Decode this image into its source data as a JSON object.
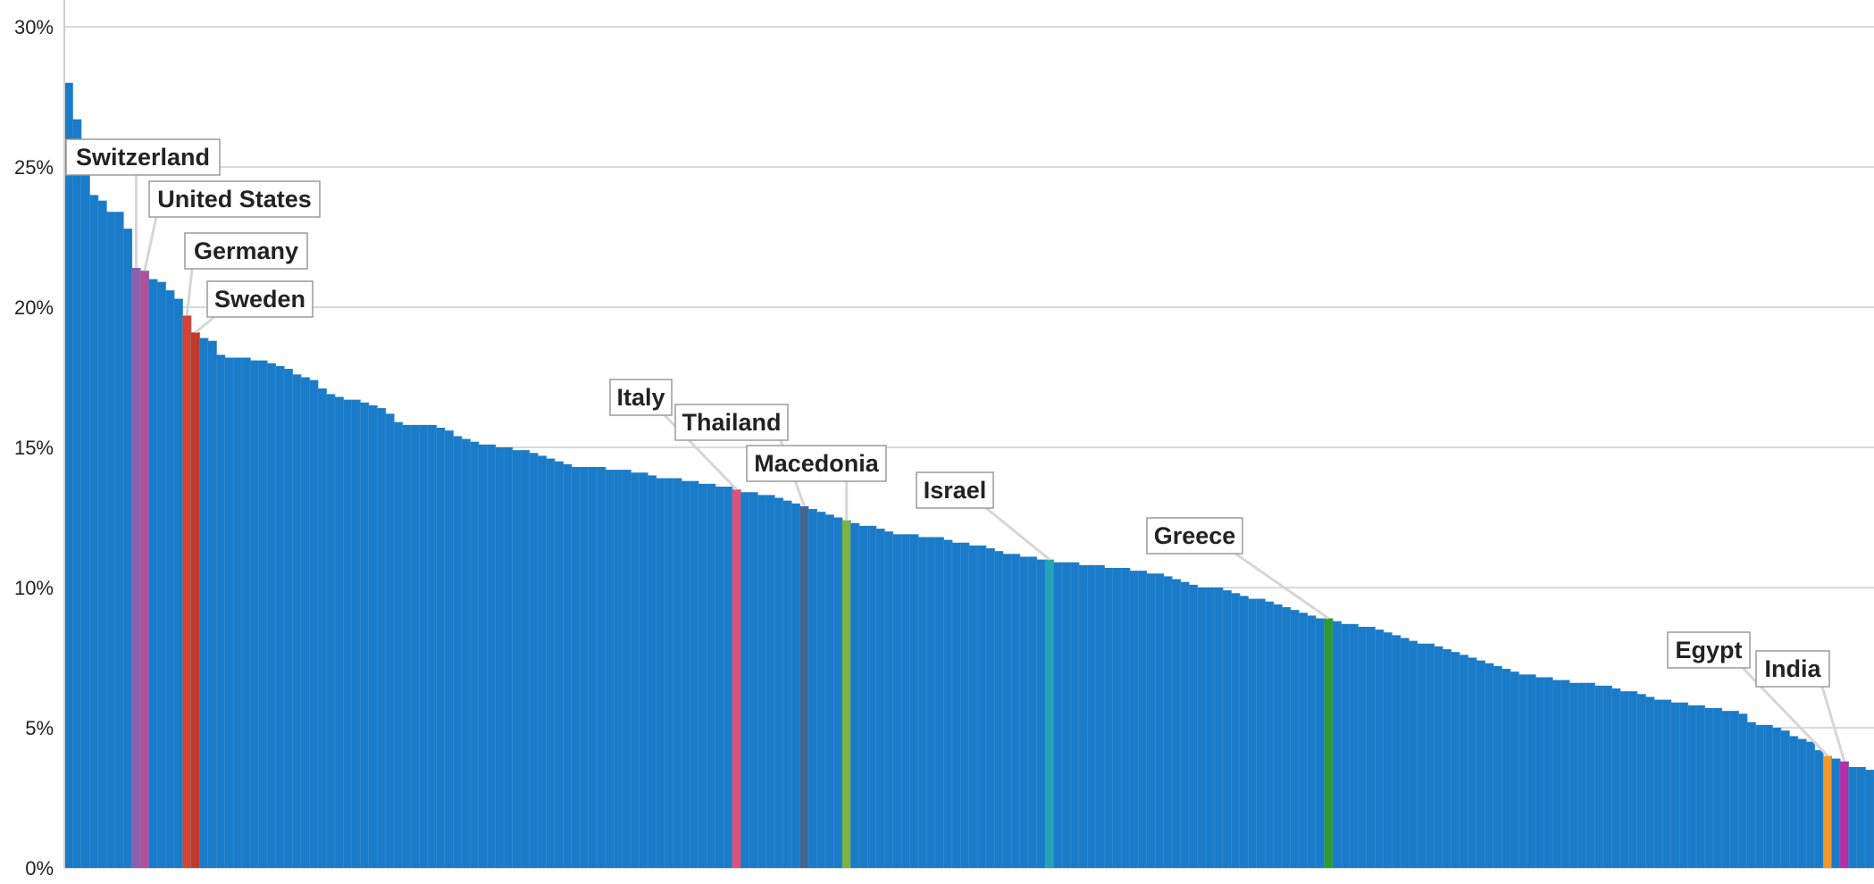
{
  "chart_data": {
    "type": "bar",
    "ylim": [
      0,
      30
    ],
    "yticks": [
      "0%",
      "5%",
      "10%",
      "15%",
      "20%",
      "25%",
      "30%"
    ],
    "grid": true,
    "colors": {
      "default_bar": "#1a7bc8",
      "grid": "#d9d9d9",
      "leader": "#d6d6d6"
    },
    "values": [
      28.0,
      26.7,
      24.8,
      24.0,
      23.8,
      23.4,
      23.4,
      22.8,
      21.4,
      21.3,
      21.0,
      20.9,
      20.6,
      20.3,
      19.7,
      19.1,
      18.9,
      18.8,
      18.3,
      18.2,
      18.2,
      18.2,
      18.1,
      18.1,
      18.0,
      17.9,
      17.8,
      17.6,
      17.5,
      17.4,
      17.1,
      16.9,
      16.8,
      16.7,
      16.7,
      16.6,
      16.5,
      16.4,
      16.2,
      15.9,
      15.8,
      15.8,
      15.8,
      15.8,
      15.7,
      15.6,
      15.4,
      15.3,
      15.2,
      15.1,
      15.1,
      15.0,
      15.0,
      14.9,
      14.9,
      14.8,
      14.7,
      14.6,
      14.5,
      14.4,
      14.3,
      14.3,
      14.3,
      14.3,
      14.2,
      14.2,
      14.2,
      14.1,
      14.1,
      14.0,
      13.9,
      13.9,
      13.9,
      13.8,
      13.8,
      13.7,
      13.7,
      13.6,
      13.6,
      13.5,
      13.4,
      13.4,
      13.3,
      13.3,
      13.2,
      13.1,
      13.0,
      12.9,
      12.8,
      12.7,
      12.6,
      12.5,
      12.4,
      12.3,
      12.2,
      12.2,
      12.1,
      12.0,
      11.9,
      11.9,
      11.9,
      11.8,
      11.8,
      11.8,
      11.7,
      11.6,
      11.6,
      11.5,
      11.5,
      11.4,
      11.3,
      11.2,
      11.2,
      11.1,
      11.1,
      11.0,
      11.0,
      10.9,
      10.9,
      10.9,
      10.8,
      10.8,
      10.8,
      10.7,
      10.7,
      10.7,
      10.6,
      10.6,
      10.5,
      10.5,
      10.4,
      10.3,
      10.2,
      10.1,
      10.0,
      10.0,
      10.0,
      9.9,
      9.8,
      9.7,
      9.6,
      9.6,
      9.5,
      9.4,
      9.3,
      9.2,
      9.1,
      9.0,
      8.9,
      8.9,
      8.8,
      8.7,
      8.7,
      8.6,
      8.6,
      8.5,
      8.4,
      8.3,
      8.2,
      8.1,
      8.0,
      8.0,
      7.9,
      7.8,
      7.7,
      7.6,
      7.5,
      7.4,
      7.3,
      7.2,
      7.1,
      7.0,
      6.9,
      6.9,
      6.8,
      6.8,
      6.7,
      6.7,
      6.6,
      6.6,
      6.6,
      6.5,
      6.5,
      6.4,
      6.3,
      6.3,
      6.2,
      6.1,
      6.0,
      6.0,
      5.9,
      5.9,
      5.8,
      5.8,
      5.7,
      5.7,
      5.6,
      5.6,
      5.5,
      5.2,
      5.1,
      5.1,
      5.0,
      4.9,
      4.7,
      4.6,
      4.5,
      4.2,
      4.0,
      3.9,
      3.8,
      3.6,
      3.6,
      3.5
    ],
    "highlights": [
      {
        "index": 8,
        "color": "#8a5fae"
      },
      {
        "index": 9,
        "color": "#b64d9a"
      },
      {
        "index": 14,
        "color": "#d8412d"
      },
      {
        "index": 15,
        "color": "#c0392b"
      },
      {
        "index": 79,
        "color": "#e0507a"
      },
      {
        "index": 87,
        "color": "#45648f"
      },
      {
        "index": 92,
        "color": "#7cb342"
      },
      {
        "index": 116,
        "color": "#22a3b8"
      },
      {
        "index": 149,
        "color": "#2e9b2e"
      },
      {
        "index": 208,
        "color": "#f2972a"
      },
      {
        "index": 210,
        "color": "#b62fa8"
      }
    ],
    "annotations": [
      {
        "label": "Switzerland",
        "index": 8
      },
      {
        "label": "United States",
        "index": 9
      },
      {
        "label": "Germany",
        "index": 14
      },
      {
        "label": "Sweden",
        "index": 15
      },
      {
        "label": "Italy",
        "index": 79
      },
      {
        "label": "Thailand",
        "index": 87
      },
      {
        "label": "Macedonia",
        "index": 92
      },
      {
        "label": "Israel",
        "index": 116
      },
      {
        "label": "Greece",
        "index": 149
      },
      {
        "label": "Egypt",
        "index": 208
      },
      {
        "label": "India",
        "index": 210
      }
    ]
  }
}
